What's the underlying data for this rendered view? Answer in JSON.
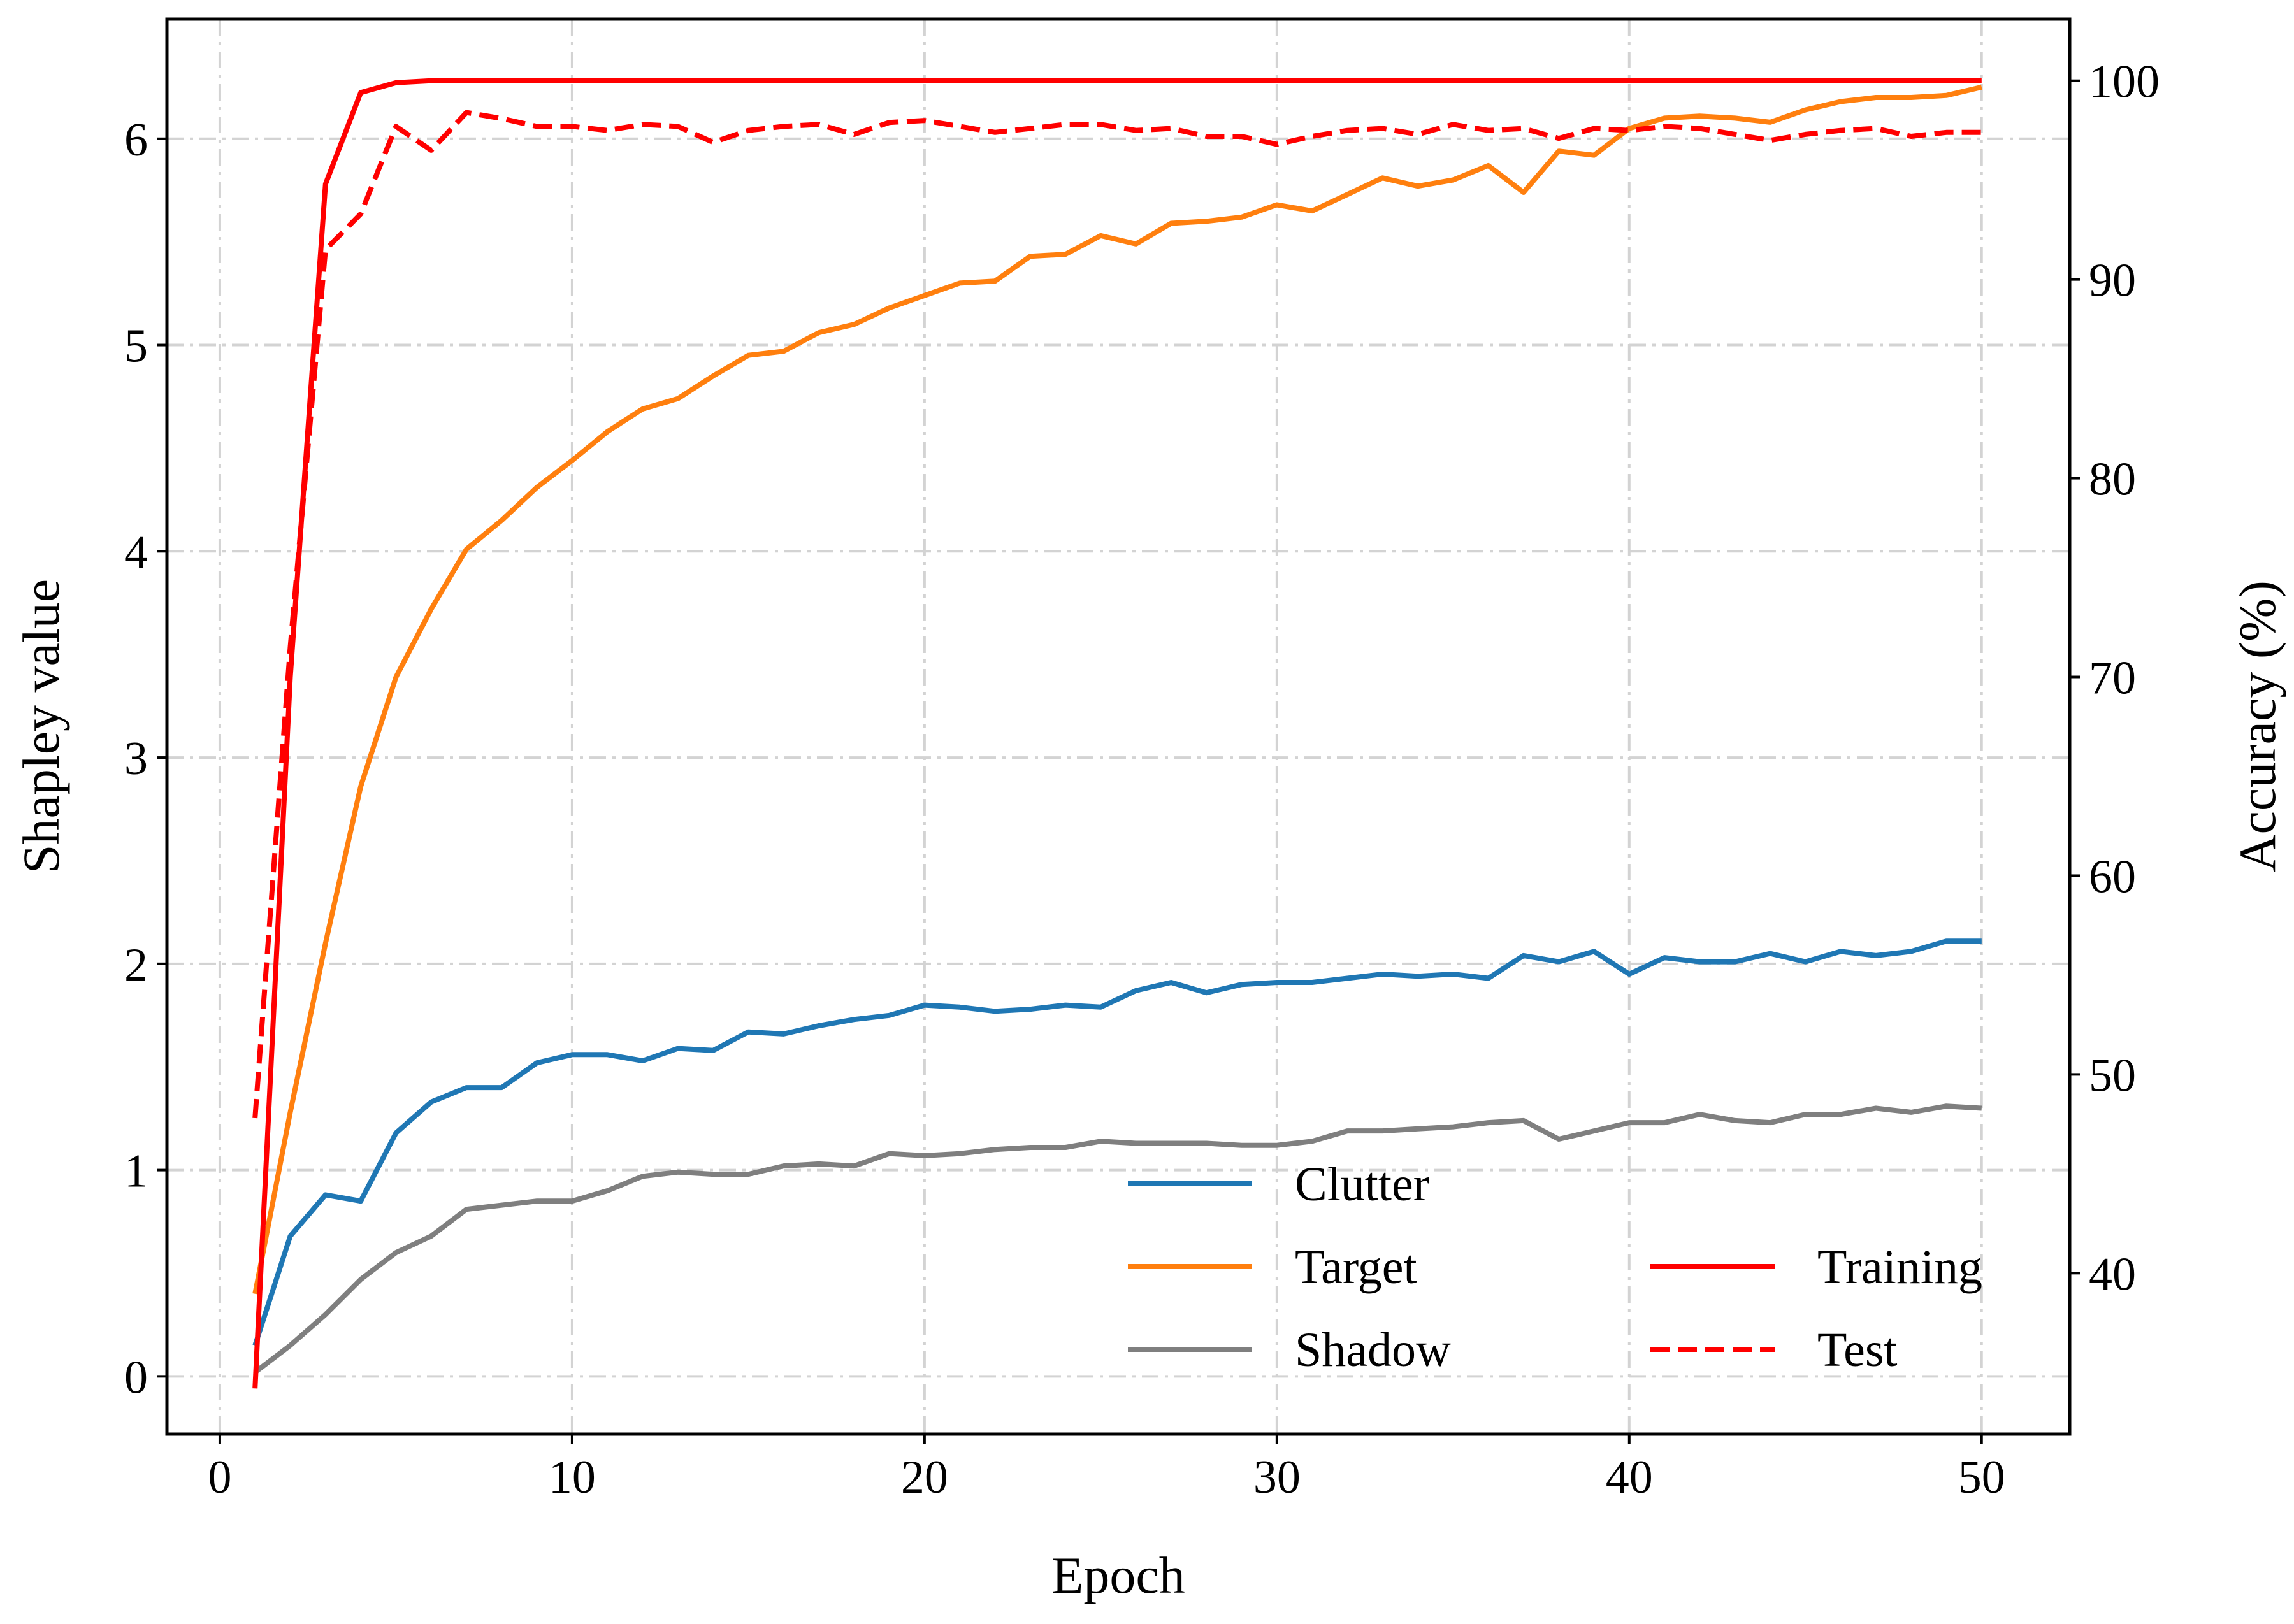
{
  "chart_data": {
    "type": "line",
    "xlabel": "Epoch",
    "ylabel": "Shapley value",
    "y2label": "Accuracy (%)",
    "xlim": [
      -1.5,
      52.5
    ],
    "ylim": [
      -0.28,
      6.58
    ],
    "y2lim": [
      31.9,
      103.1
    ],
    "xticks": [
      0,
      10,
      20,
      30,
      40,
      50
    ],
    "yticks": [
      0,
      1,
      2,
      3,
      4,
      5,
      6
    ],
    "y2ticks": [
      40,
      50,
      60,
      70,
      80,
      90,
      100
    ],
    "grid": true,
    "legend_placement": "lower-right",
    "x": [
      1,
      2,
      3,
      4,
      5,
      6,
      7,
      8,
      9,
      10,
      11,
      12,
      13,
      14,
      15,
      16,
      17,
      18,
      19,
      20,
      21,
      22,
      23,
      24,
      25,
      26,
      27,
      28,
      29,
      30,
      31,
      32,
      33,
      34,
      35,
      36,
      37,
      38,
      39,
      40,
      41,
      42,
      43,
      44,
      45,
      46,
      47,
      48,
      49,
      50
    ],
    "series": [
      {
        "name": "Clutter",
        "axis": "left",
        "color": "#1f77b4",
        "style": "solid",
        "values": [
          0.15,
          0.68,
          0.88,
          0.85,
          1.18,
          1.33,
          1.4,
          1.4,
          1.52,
          1.56,
          1.56,
          1.53,
          1.59,
          1.58,
          1.67,
          1.66,
          1.7,
          1.73,
          1.75,
          1.8,
          1.79,
          1.77,
          1.78,
          1.8,
          1.79,
          1.87,
          1.91,
          1.86,
          1.9,
          1.91,
          1.91,
          1.93,
          1.95,
          1.94,
          1.95,
          1.93,
          2.04,
          2.01,
          2.06,
          1.95,
          2.03,
          2.01,
          2.01,
          2.05,
          2.01,
          2.06,
          2.04,
          2.06,
          2.11,
          2.11
        ]
      },
      {
        "name": "Target",
        "axis": "left",
        "color": "#ff7f0e",
        "style": "solid",
        "values": [
          0.4,
          1.28,
          2.1,
          2.86,
          3.39,
          3.72,
          4.01,
          4.15,
          4.31,
          4.44,
          4.58,
          4.69,
          4.74,
          4.85,
          4.95,
          4.97,
          5.06,
          5.1,
          5.18,
          5.24,
          5.3,
          5.31,
          5.43,
          5.44,
          5.53,
          5.49,
          5.59,
          5.6,
          5.62,
          5.68,
          5.65,
          5.73,
          5.81,
          5.77,
          5.8,
          5.87,
          5.74,
          5.94,
          5.92,
          6.05,
          6.1,
          6.11,
          6.1,
          6.08,
          6.14,
          6.18,
          6.2,
          6.2,
          6.21,
          6.25
        ]
      },
      {
        "name": "Shadow",
        "axis": "left",
        "color": "#7f7f7f",
        "style": "solid",
        "values": [
          0.02,
          0.15,
          0.3,
          0.47,
          0.6,
          0.68,
          0.81,
          0.83,
          0.85,
          0.85,
          0.9,
          0.97,
          0.99,
          0.98,
          0.98,
          1.02,
          1.03,
          1.02,
          1.08,
          1.07,
          1.08,
          1.1,
          1.11,
          1.11,
          1.14,
          1.13,
          1.13,
          1.13,
          1.12,
          1.12,
          1.14,
          1.19,
          1.19,
          1.2,
          1.21,
          1.23,
          1.24,
          1.15,
          1.19,
          1.23,
          1.23,
          1.27,
          1.24,
          1.23,
          1.27,
          1.27,
          1.3,
          1.28,
          1.31,
          1.3
        ]
      },
      {
        "name": "Training",
        "axis": "right",
        "color": "#ff0000",
        "style": "solid",
        "values": [
          34.2,
          70.0,
          94.8,
          99.4,
          99.9,
          100,
          100,
          100,
          100,
          100,
          100,
          100,
          100,
          100,
          100,
          100,
          100,
          100,
          100,
          100,
          100,
          100,
          100,
          100,
          100,
          100,
          100,
          100,
          100,
          100,
          100,
          100,
          100,
          100,
          100,
          100,
          100,
          100,
          100,
          100,
          100,
          100,
          100,
          100,
          100,
          100,
          100,
          100,
          100,
          100
        ]
      },
      {
        "name": "Test",
        "axis": "right",
        "color": "#ff0000",
        "style": "dashed",
        "values": [
          47.8,
          71.5,
          91.5,
          93.3,
          97.7,
          96.5,
          98.4,
          98.1,
          97.7,
          97.7,
          97.5,
          97.8,
          97.7,
          96.9,
          97.5,
          97.7,
          97.8,
          97.3,
          97.9,
          98.0,
          97.7,
          97.4,
          97.6,
          97.8,
          97.8,
          97.5,
          97.6,
          97.2,
          97.2,
          96.8,
          97.2,
          97.5,
          97.6,
          97.3,
          97.8,
          97.5,
          97.6,
          97.1,
          97.6,
          97.5,
          97.7,
          97.6,
          97.3,
          97.0,
          97.3,
          97.5,
          97.6,
          97.2,
          97.4,
          97.4
        ]
      }
    ]
  }
}
